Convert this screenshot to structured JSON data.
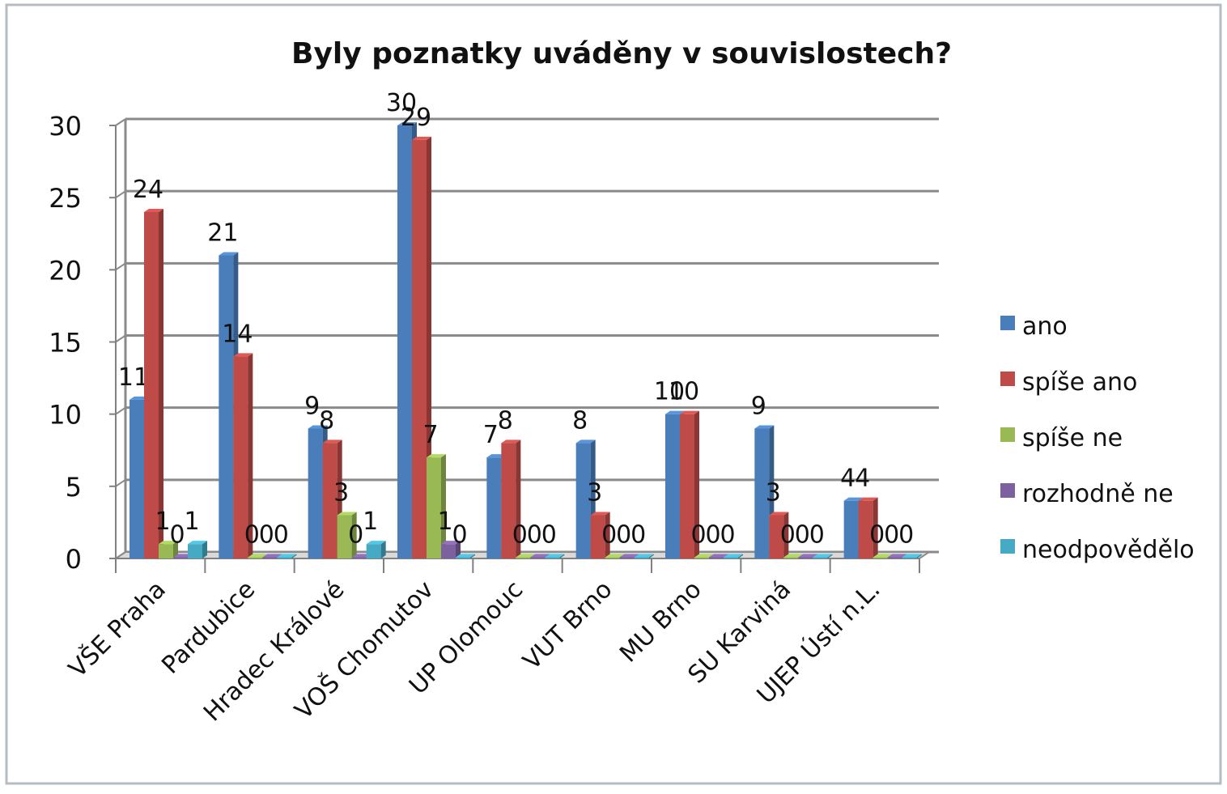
{
  "chart_data": {
    "type": "bar",
    "title": "Byly poznatky uváděny v souvislostech?",
    "xlabel": "",
    "ylabel": "",
    "ylim": [
      0,
      30
    ],
    "yticks": [
      0,
      5,
      10,
      15,
      20,
      25,
      30
    ],
    "grid": true,
    "legend_position": "right",
    "categories": [
      "VŠE Praha",
      "Pardubice",
      "Hradec Králové",
      "VOŠ Chomutov",
      "UP Olomouc",
      "VUT Brno",
      "MU Brno",
      "SU Karviná",
      "UJEP Ústí n.L."
    ],
    "series": [
      {
        "name": "ano",
        "color": "#4a7ebb",
        "values": [
          11,
          21,
          9,
          30,
          7,
          8,
          10,
          9,
          4
        ]
      },
      {
        "name": "spíše ano",
        "color": "#be4b48",
        "values": [
          24,
          14,
          8,
          29,
          8,
          3,
          10,
          3,
          4
        ]
      },
      {
        "name": "spíše ne",
        "color": "#98b954",
        "values": [
          1,
          0,
          3,
          7,
          0,
          0,
          0,
          0,
          0
        ]
      },
      {
        "name": "rozhodně ne",
        "color": "#7d60a0",
        "values": [
          0,
          0,
          0,
          1,
          0,
          0,
          0,
          0,
          0
        ]
      },
      {
        "name": "neodpovědělo",
        "color": "#46aac5",
        "values": [
          1,
          0,
          1,
          0,
          0,
          0,
          0,
          0,
          0
        ]
      }
    ]
  }
}
